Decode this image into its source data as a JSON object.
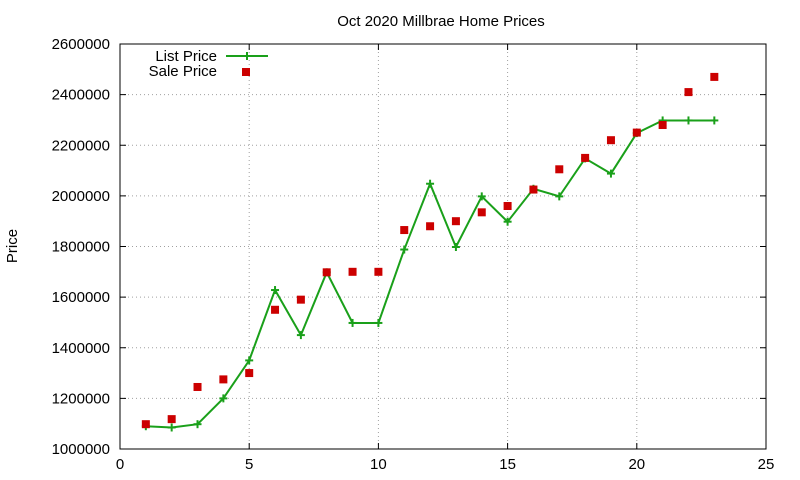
{
  "chart_data": {
    "type": "line",
    "title": "Oct 2020 Millbrae Home Prices",
    "xlabel": "",
    "ylabel": "Price",
    "xlim": [
      0,
      25
    ],
    "ylim": [
      1000000,
      2600000
    ],
    "x_ticks": [
      0,
      5,
      10,
      15,
      20,
      25
    ],
    "y_ticks": [
      1000000,
      1200000,
      1400000,
      1600000,
      1800000,
      2000000,
      2200000,
      2400000,
      2600000
    ],
    "grid": true,
    "legend_position": "top-left",
    "series": [
      {
        "name": "List Price",
        "style": "line-with-plus-markers",
        "color": "#1aa01a",
        "x": [
          1,
          2,
          3,
          4,
          5,
          6,
          7,
          8,
          9,
          10,
          11,
          12,
          13,
          14,
          15,
          16,
          17,
          18,
          19,
          20,
          21,
          22,
          23
        ],
        "values": [
          1090000,
          1085000,
          1098000,
          1200000,
          1350000,
          1628000,
          1450000,
          1698000,
          1498000,
          1498000,
          1788000,
          2048000,
          1798000,
          1998000,
          1898000,
          2028000,
          1998000,
          2148000,
          2088000,
          2248000,
          2298000,
          2298000,
          2298000
        ]
      },
      {
        "name": "Sale Price",
        "style": "square-markers",
        "color": "#cc0000",
        "x": [
          1,
          2,
          3,
          4,
          5,
          6,
          7,
          8,
          9,
          10,
          11,
          12,
          13,
          14,
          15,
          16,
          17,
          18,
          19,
          20,
          21,
          22,
          23
        ],
        "values": [
          1098000,
          1118000,
          1245000,
          1275000,
          1300000,
          1550000,
          1590000,
          1698000,
          1700000,
          1700000,
          1865000,
          1880000,
          1900000,
          1935000,
          1960000,
          2025000,
          2105000,
          2150000,
          2220000,
          2250000,
          2280000,
          2410000,
          2470000
        ]
      }
    ]
  }
}
